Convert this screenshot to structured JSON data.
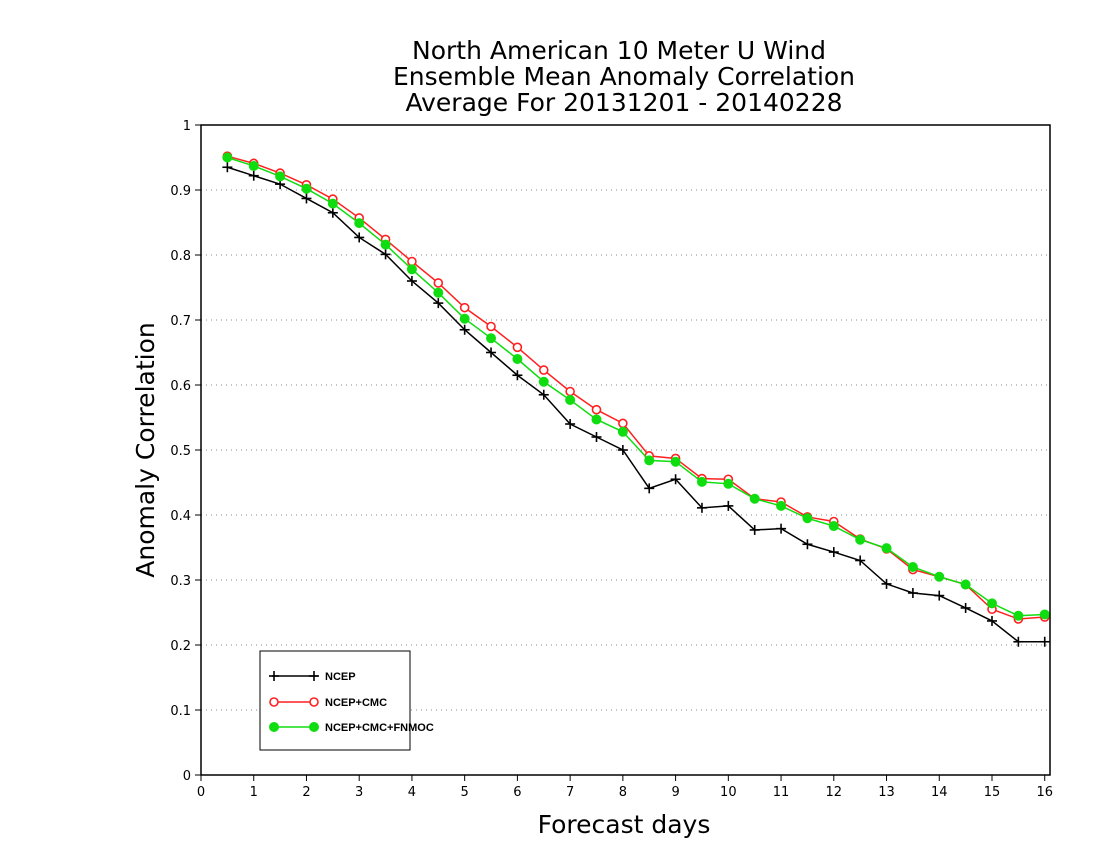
{
  "chart_data": {
    "type": "line",
    "title_lines": [
      "North American 10 Meter U Wind",
      "Ensemble Mean Anomaly Correlation",
      "Average For 20131201 - 20140228"
    ],
    "xlabel": "Forecast days",
    "ylabel": "Anomaly Correlation",
    "xlim": [
      0,
      16.1
    ],
    "ylim": [
      0,
      1
    ],
    "x_ticks": [
      0,
      1,
      2,
      3,
      4,
      5,
      6,
      7,
      8,
      9,
      10,
      11,
      12,
      13,
      14,
      15,
      16
    ],
    "y_ticks": [
      0,
      0.1,
      0.2,
      0.3,
      0.4,
      0.5,
      0.6,
      0.7,
      0.8,
      0.9,
      1
    ],
    "y_tick_labels": [
      "0",
      "0.1",
      "0.2",
      "0.3",
      "0.4",
      "0.5",
      "0.6",
      "0.7",
      "0.8",
      "0.9",
      "1"
    ],
    "grid": "horizontal dotted",
    "legend_position": "bottom-left",
    "x": [
      0.5,
      1,
      1.5,
      2,
      2.5,
      3,
      3.5,
      4,
      4.5,
      5,
      5.5,
      6,
      6.5,
      7,
      7.5,
      8,
      8.5,
      9,
      9.5,
      10,
      10.5,
      11,
      11.5,
      12,
      12.5,
      13,
      13.5,
      14,
      14.5,
      15,
      15.5,
      16
    ],
    "series": [
      {
        "name": "NCEP",
        "color": "#000000",
        "marker": "plus",
        "values": [
          0.935,
          0.922,
          0.909,
          0.887,
          0.865,
          0.827,
          0.801,
          0.76,
          0.726,
          0.685,
          0.65,
          0.615,
          0.585,
          0.54,
          0.52,
          0.5,
          0.441,
          0.455,
          0.411,
          0.414,
          0.377,
          0.379,
          0.355,
          0.343,
          0.33,
          0.294,
          0.28,
          0.276,
          0.257,
          0.237,
          0.205,
          0.205
        ]
      },
      {
        "name": "NCEP+CMC",
        "color": "#ff2020",
        "marker": "open-circle",
        "values": [
          0.952,
          0.941,
          0.926,
          0.908,
          0.886,
          0.857,
          0.824,
          0.79,
          0.757,
          0.719,
          0.69,
          0.658,
          0.623,
          0.59,
          0.562,
          0.541,
          0.491,
          0.487,
          0.456,
          0.455,
          0.425,
          0.42,
          0.397,
          0.39,
          0.363,
          0.348,
          0.316,
          0.305,
          0.293,
          0.255,
          0.24,
          0.243
        ]
      },
      {
        "name": "NCEP+CMC+FNMOC",
        "color": "#10dd10",
        "marker": "filled-circle",
        "values": [
          0.95,
          0.937,
          0.921,
          0.902,
          0.879,
          0.849,
          0.816,
          0.778,
          0.742,
          0.702,
          0.672,
          0.64,
          0.605,
          0.577,
          0.547,
          0.528,
          0.484,
          0.482,
          0.451,
          0.448,
          0.425,
          0.414,
          0.395,
          0.383,
          0.362,
          0.349,
          0.32,
          0.305,
          0.293,
          0.264,
          0.245,
          0.247
        ]
      }
    ]
  }
}
